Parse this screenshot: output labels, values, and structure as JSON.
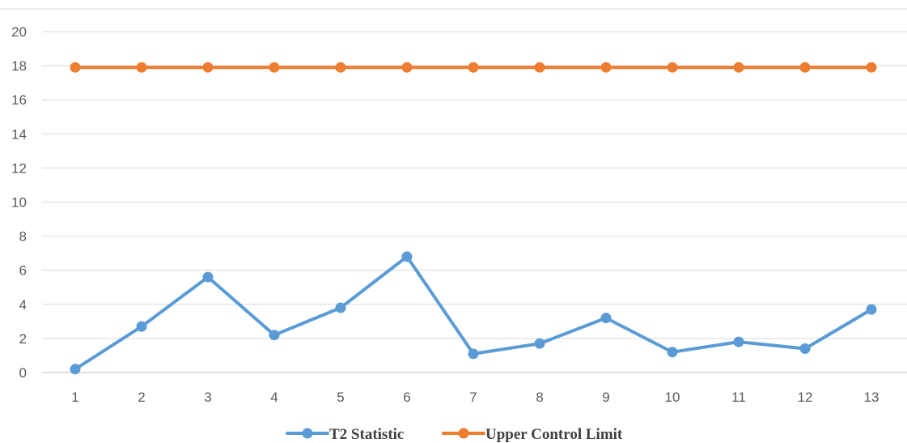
{
  "chart_data": {
    "type": "line",
    "title": "",
    "xlabel": "",
    "ylabel": "",
    "categories": [
      "1",
      "2",
      "3",
      "4",
      "5",
      "6",
      "7",
      "8",
      "9",
      "10",
      "11",
      "12",
      "13"
    ],
    "ylim": [
      0,
      20
    ],
    "yticks": [
      0,
      2,
      4,
      6,
      8,
      10,
      12,
      14,
      16,
      18,
      20
    ],
    "grid": true,
    "legend_position": "bottom",
    "series": [
      {
        "name": "T2 Statistic",
        "color": "#5B9BD5",
        "values": [
          0.2,
          2.7,
          5.6,
          2.2,
          3.8,
          6.8,
          1.1,
          1.7,
          3.2,
          1.2,
          1.8,
          1.4,
          3.7
        ]
      },
      {
        "name": "Upper Control Limit",
        "color": "#ED7D31",
        "values": [
          17.9,
          17.9,
          17.9,
          17.9,
          17.9,
          17.9,
          17.9,
          17.9,
          17.9,
          17.9,
          17.9,
          17.9,
          17.9
        ]
      }
    ]
  }
}
